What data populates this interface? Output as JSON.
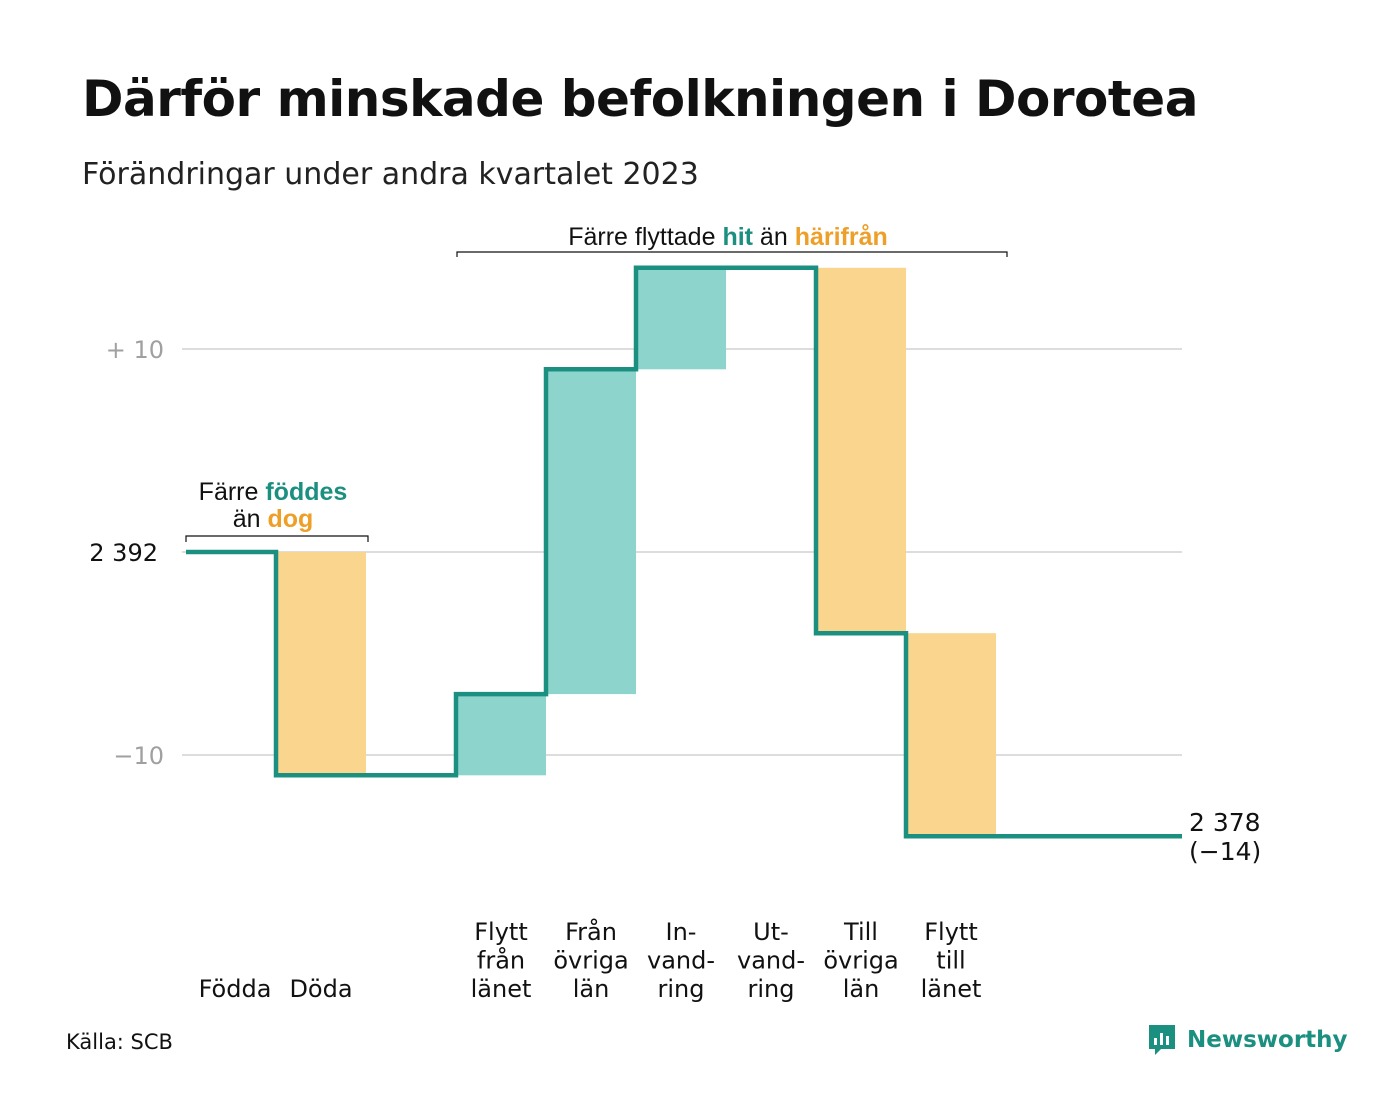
{
  "title": "Därför minskade befolkningen i Dorotea",
  "subtitle": "Förändringar under andra kvartalet 2023",
  "source": "Källa: SCB",
  "brand": "Newsworthy",
  "colors": {
    "line": "#1b8f80",
    "increase": "#8dd5cc",
    "decrease": "#f9d58e",
    "teal_text": "#1b8f80",
    "orange_text": "#ee9f27",
    "grid": "#dddddd",
    "axis_text": "#a0a0a0"
  },
  "annotations": {
    "births_deaths": {
      "line1_prefix": "Färre ",
      "line1_highlight": "föddes",
      "line2_prefix": "än ",
      "line2_highlight": "dog"
    },
    "migration": {
      "prefix": "Färre flyttade ",
      "highlight1": "hit",
      "middle": " än ",
      "highlight2": "härifrån"
    }
  },
  "chart_data": {
    "type": "waterfall",
    "start_label": "2  392",
    "start_value": 0,
    "end_label_line1": "2 378",
    "end_label_line2": "(−14)",
    "end_value": -14,
    "ylim": [
      -18,
      17
    ],
    "y_ticks": [
      {
        "value": 10,
        "label": "+  10"
      },
      {
        "value": -10,
        "label": "−10"
      }
    ],
    "grid_values": [
      10,
      0,
      -10
    ],
    "steps": [
      {
        "label": "Födda",
        "delta": 0
      },
      {
        "label": "Döda",
        "delta": -11
      },
      {
        "label": "",
        "delta": 0
      },
      {
        "label": "Flytt\nfrån\nlänet",
        "delta": 4
      },
      {
        "label": "Från\növriga\nlän",
        "delta": 16
      },
      {
        "label": "In-\nvand-\nring",
        "delta": 5
      },
      {
        "label": "Ut-\nvand-\nring",
        "delta": 0
      },
      {
        "label": "Till\növriga\nlän",
        "delta": -18
      },
      {
        "label": "Flytt\ntill\nlänet",
        "delta": -10
      }
    ]
  }
}
